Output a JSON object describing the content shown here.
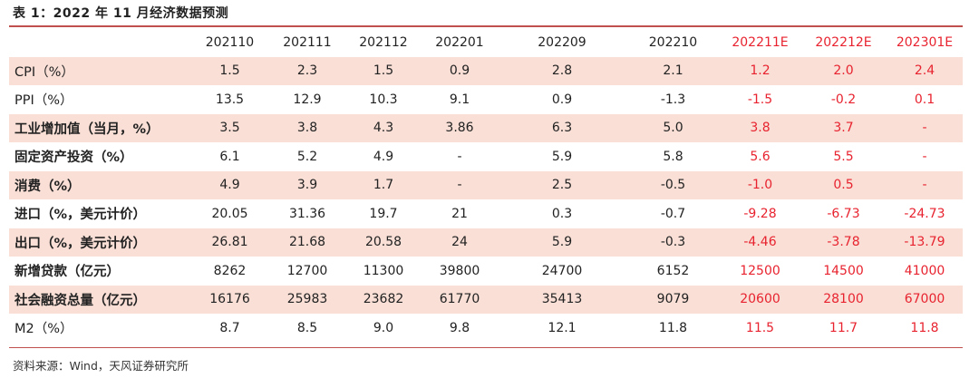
{
  "title": "表 1：2022 年 11 月经济数据预测",
  "header": [
    "",
    "202110",
    "202111",
    "202112",
    "202201",
    "202209",
    "202210",
    "202211E",
    "202212E",
    "202301E"
  ],
  "estimate_columns": [
    7,
    8,
    9
  ],
  "rows": [
    {
      "label": "CPI（%）",
      "values": [
        "1.5",
        "2.3",
        "1.5",
        "0.9",
        "2.8",
        "2.1",
        "1.2",
        "2.0",
        "2.4"
      ],
      "bold": false,
      "band": true
    },
    {
      "label": "PPI（%）",
      "values": [
        "13.5",
        "12.9",
        "10.3",
        "9.1",
        "0.9",
        "-1.3",
        "-1.5",
        "-0.2",
        "0.1"
      ],
      "bold": false,
      "band": false
    },
    {
      "label": "工业增加值（当月，%）",
      "values": [
        "3.5",
        "3.8",
        "4.3",
        "3.86",
        "6.3",
        "5.0",
        "3.8",
        "3.7",
        "-"
      ],
      "bold": true,
      "band": true
    },
    {
      "label": "固定资产投资（%）",
      "values": [
        "6.1",
        "5.2",
        "4.9",
        "-",
        "5.9",
        "5.8",
        "5.6",
        "5.5",
        "-"
      ],
      "bold": true,
      "band": false
    },
    {
      "label": "消费（%）",
      "values": [
        "4.9",
        "3.9",
        "1.7",
        "-",
        "2.5",
        "-0.5",
        "-1.0",
        "0.5",
        "-"
      ],
      "bold": true,
      "band": true
    },
    {
      "label": "进口（%，美元计价）",
      "values": [
        "20.05",
        "31.36",
        "19.7",
        "21",
        "0.3",
        "-0.7",
        "-9.28",
        "-6.73",
        "-24.73"
      ],
      "bold": true,
      "band": false
    },
    {
      "label": "出口（%，美元计价）",
      "values": [
        "26.81",
        "21.68",
        "20.58",
        "24",
        "5.9",
        "-0.3",
        "-4.46",
        "-3.78",
        "-13.79"
      ],
      "bold": true,
      "band": true
    },
    {
      "label": "新增贷款（亿元）",
      "values": [
        "8262",
        "12700",
        "11300",
        "39800",
        "24700",
        "6152",
        "12500",
        "14500",
        "41000"
      ],
      "bold": true,
      "band": false
    },
    {
      "label": "社会融资总量（亿元）",
      "values": [
        "16176",
        "25983",
        "23682",
        "61770",
        "35413",
        "9079",
        "20600",
        "28100",
        "67000"
      ],
      "bold": true,
      "band": true
    },
    {
      "label": "M2（%）",
      "values": [
        "8.7",
        "8.5",
        "9.0",
        "9.8",
        "12.1",
        "11.8",
        "11.5",
        "11.7",
        "11.8"
      ],
      "bold": false,
      "band": false
    }
  ],
  "source": "资料来源：Wind，天风证券研究所",
  "colors": {
    "accent": "#c0504d",
    "estimate_text": "#e8232f",
    "band_fill": "#f9dfd6"
  }
}
